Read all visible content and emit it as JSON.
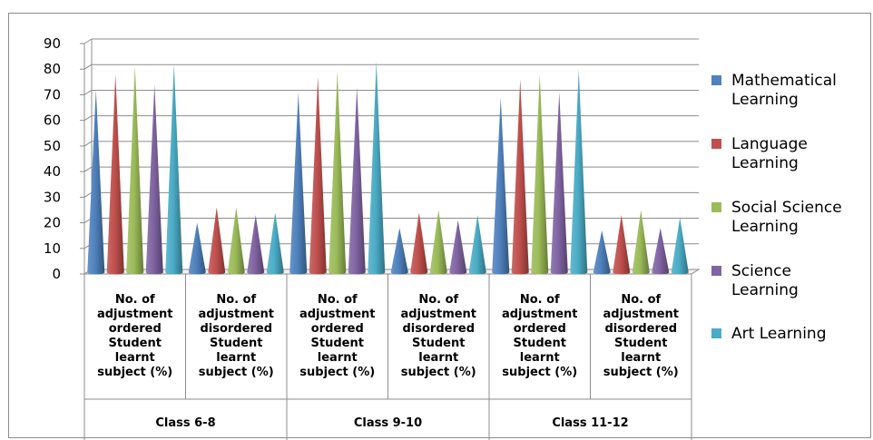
{
  "chart_data": {
    "type": "bar",
    "style": "3d-cone",
    "ylim": [
      0,
      90
    ],
    "yticks": [
      "0",
      "10",
      "20",
      "30",
      "40",
      "50",
      "60",
      "70",
      "80",
      "90"
    ],
    "categories": [
      [
        "No. of",
        "adjustment",
        "ordered",
        "Student",
        "learnt",
        "subject  (%)"
      ],
      [
        "No. of",
        "adjustment",
        "disordered",
        "Student",
        "learnt",
        "subject  (%)"
      ],
      [
        "No. of",
        "adjustment",
        "ordered",
        "Student",
        "learnt",
        "subject  (%)"
      ],
      [
        "No. of",
        "adjustment",
        "disordered",
        "Student",
        "learnt",
        "subject  (%)"
      ],
      [
        "No. of",
        "adjustment",
        "ordered",
        "Student",
        "learnt",
        "subject  (%)"
      ],
      [
        "No. of",
        "adjustment",
        "disordered",
        "Student",
        "learnt",
        "subject  (%)"
      ]
    ],
    "groups": [
      "Class 6-8",
      "Class 9-10",
      "Class 11-12"
    ],
    "series": [
      {
        "name": [
          "Mathematical",
          "Learning"
        ],
        "color": "#4f81bd",
        "values": [
          72,
          20,
          71,
          18,
          69,
          17
        ]
      },
      {
        "name": [
          "Language",
          "Learning"
        ],
        "color": "#c0504d",
        "values": [
          78,
          26,
          77,
          24,
          76,
          23
        ]
      },
      {
        "name": [
          "Social Science",
          "Learning"
        ],
        "color": "#9bbb59",
        "values": [
          81,
          26,
          79,
          25,
          78,
          25
        ]
      },
      {
        "name": [
          "Science",
          "Learning"
        ],
        "color": "#8064a2",
        "values": [
          74,
          23,
          73,
          21,
          71,
          18
        ]
      },
      {
        "name": [
          "Art Learning"
        ],
        "color": "#4bacc6",
        "values": [
          82,
          24,
          83,
          23,
          80,
          22
        ]
      }
    ],
    "legend": "right",
    "grid": true
  }
}
